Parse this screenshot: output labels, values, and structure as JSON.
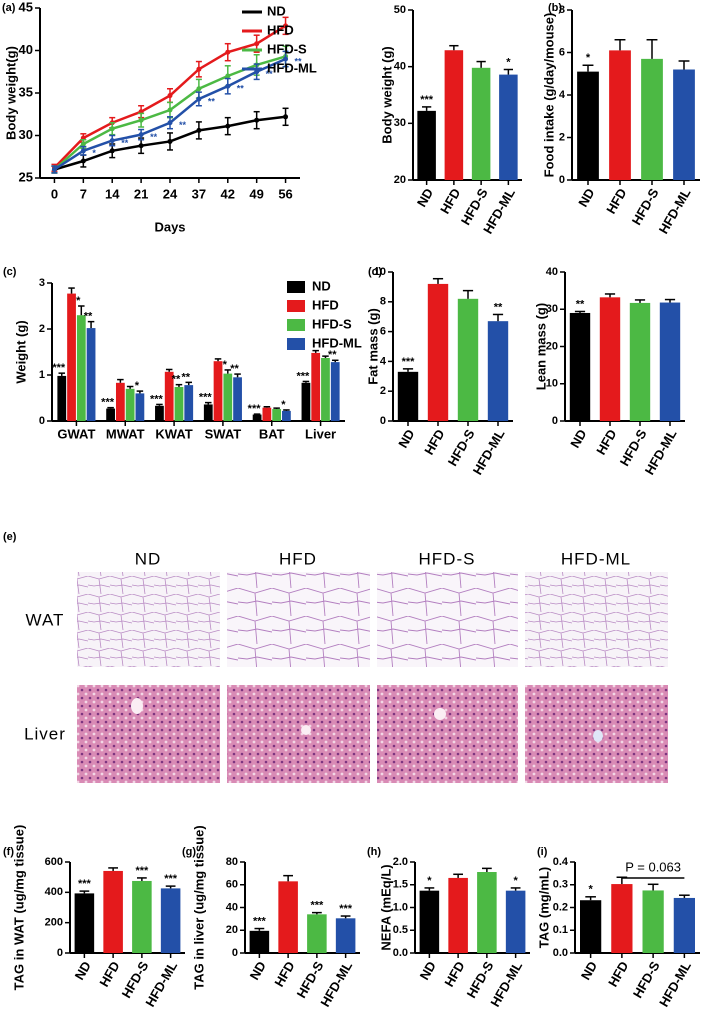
{
  "chart_data": [
    {
      "type": "line",
      "label": "(a)",
      "xlabel": "Days",
      "ylabel": "Body weight(g)",
      "categories": [
        "0",
        "7",
        "14",
        "21",
        "24",
        "37",
        "42",
        "49",
        "56"
      ],
      "ylim": [
        25,
        45
      ],
      "yticks": [
        25,
        30,
        35,
        40,
        45
      ],
      "legend": "upper right",
      "series": [
        {
          "name": "ND",
          "color": "#000000",
          "values": [
            26,
            27,
            28.2,
            28.8,
            29.3,
            30.6,
            31.1,
            31.8,
            32.2
          ],
          "errors": [
            0.4,
            0.7,
            0.8,
            0.9,
            1.0,
            1.0,
            1.0,
            1.0,
            1.0
          ]
        },
        {
          "name": "HFD",
          "color": "#e41a1c",
          "values": [
            26.2,
            29.7,
            31.5,
            32.8,
            34.7,
            37.8,
            39.8,
            40.8,
            42.9
          ],
          "errors": [
            0.4,
            0.5,
            0.6,
            0.7,
            0.8,
            0.9,
            1.0,
            1.0,
            1.0
          ]
        },
        {
          "name": "HFD-S",
          "color": "#4cb944",
          "values": [
            26,
            29,
            30.8,
            31.8,
            33,
            35.5,
            37,
            38.3,
            39.3
          ],
          "errors": [
            0.4,
            0.5,
            0.7,
            0.8,
            0.9,
            1.1,
            1.2,
            1.2,
            1.2
          ]
        },
        {
          "name": "HFD-ML",
          "color": "#2350a8",
          "values": [
            26,
            28.2,
            29.4,
            30.1,
            31.5,
            34.3,
            35.8,
            37.5,
            39
          ],
          "errors": [
            0.4,
            0.5,
            0.6,
            0.6,
            0.7,
            0.8,
            0.9,
            0.9,
            0.9
          ],
          "significance": [
            null,
            "*",
            "**",
            "**",
            "**",
            "**",
            "**",
            "**",
            "**"
          ]
        }
      ]
    },
    {
      "type": "bar",
      "ylabel": "Body weight (g)",
      "categories": [
        "ND",
        "HFD",
        "HFD-S",
        "HFD-ML"
      ],
      "colors": [
        "#000000",
        "#e41a1c",
        "#4cb944",
        "#2350a8"
      ],
      "values": [
        32.2,
        42.9,
        39.8,
        38.6
      ],
      "errors": [
        0.7,
        0.8,
        1.1,
        0.9
      ],
      "significance": [
        "***",
        null,
        null,
        "*"
      ],
      "ylim": [
        20,
        50
      ],
      "yticks": [
        20,
        30,
        40,
        50
      ]
    },
    {
      "type": "bar",
      "label": "(b)",
      "ylabel": "Food intake (g/day/mouse)",
      "categories": [
        "ND",
        "HFD",
        "HFD-S",
        "HFD-ML"
      ],
      "colors": [
        "#000000",
        "#e41a1c",
        "#4cb944",
        "#2350a8"
      ],
      "values": [
        5.1,
        6.1,
        5.7,
        5.2
      ],
      "errors": [
        0.3,
        0.5,
        0.9,
        0.4
      ],
      "significance": [
        "*",
        null,
        null,
        null
      ],
      "ylim": [
        0,
        8
      ],
      "yticks": [
        0,
        2,
        4,
        6,
        8
      ]
    },
    {
      "type": "bar",
      "label": "(c)",
      "ylabel": "Weight (g)",
      "categories": [
        "GWAT",
        "MWAT",
        "KWAT",
        "SWAT",
        "BAT",
        "Liver"
      ],
      "ylim": [
        0,
        3
      ],
      "yticks": [
        0,
        1,
        2,
        3
      ],
      "legend": "upper right",
      "series": [
        {
          "name": "ND",
          "color": "#000000",
          "values": [
            0.98,
            0.27,
            0.33,
            0.36,
            0.14,
            0.83
          ],
          "errors": [
            0.06,
            0.02,
            0.03,
            0.04,
            0.01,
            0.03
          ],
          "significance": [
            "***",
            "***",
            "***",
            "***",
            "***",
            "***"
          ]
        },
        {
          "name": "HFD",
          "color": "#e41a1c",
          "values": [
            2.77,
            0.83,
            1.07,
            1.3,
            0.29,
            1.48
          ],
          "errors": [
            0.12,
            0.07,
            0.05,
            0.05,
            0.02,
            0.05
          ]
        },
        {
          "name": "HFD-S",
          "color": "#4cb944",
          "values": [
            2.3,
            0.7,
            0.74,
            1.03,
            0.26,
            1.37
          ],
          "errors": [
            0.2,
            0.05,
            0.05,
            0.08,
            0.02,
            0.04
          ],
          "significance": [
            "*",
            null,
            "**",
            "*",
            null,
            null
          ]
        },
        {
          "name": "HFD-ML",
          "color": "#2350a8",
          "values": [
            2.02,
            0.6,
            0.78,
            0.95,
            0.22,
            1.28
          ],
          "errors": [
            0.14,
            0.05,
            0.06,
            0.07,
            0.02,
            0.04
          ],
          "significance": [
            "**",
            "*",
            "**",
            "**",
            "*",
            "**"
          ]
        }
      ]
    },
    {
      "type": "bar",
      "label": "(d)",
      "ylabel": "Fat mass (g)",
      "categories": [
        "ND",
        "HFD",
        "HFD-S",
        "HFD-ML"
      ],
      "colors": [
        "#000000",
        "#e41a1c",
        "#4cb944",
        "#2350a8"
      ],
      "values": [
        3.3,
        9.2,
        8.2,
        6.7
      ],
      "errors": [
        0.2,
        0.35,
        0.55,
        0.45
      ],
      "significance": [
        "***",
        null,
        null,
        "**"
      ],
      "ylim": [
        0,
        10
      ],
      "yticks": [
        0,
        2,
        4,
        6,
        8,
        10
      ]
    },
    {
      "type": "bar",
      "ylabel": "Lean mass (g)",
      "categories": [
        "ND",
        "HFD",
        "HFD-S",
        "HFD-ML"
      ],
      "colors": [
        "#000000",
        "#e41a1c",
        "#4cb944",
        "#2350a8"
      ],
      "values": [
        29,
        33.2,
        31.7,
        31.8
      ],
      "errors": [
        0.4,
        0.9,
        0.8,
        0.8
      ],
      "significance": [
        "**",
        null,
        null,
        null
      ],
      "ylim": [
        0,
        40
      ],
      "yticks": [
        0,
        10,
        20,
        30,
        40
      ]
    },
    {
      "type": "bar",
      "label": "(f)",
      "ylabel": "TAG in WAT (ug/mg tissue)",
      "categories": [
        "ND",
        "HFD",
        "HFD-S",
        "HFD-ML"
      ],
      "colors": [
        "#000000",
        "#e41a1c",
        "#4cb944",
        "#2350a8"
      ],
      "values": [
        393,
        541,
        475,
        426
      ],
      "errors": [
        15,
        20,
        20,
        15
      ],
      "significance": [
        "***",
        null,
        "***",
        "***"
      ],
      "ylim": [
        0,
        600
      ],
      "yticks": [
        0,
        200,
        400,
        600
      ]
    },
    {
      "type": "bar",
      "label": "(g)",
      "ylabel": "TAG in liver (ug/mg tissue)",
      "categories": [
        "ND",
        "HFD",
        "HFD-S",
        "HFD-ML"
      ],
      "colors": [
        "#000000",
        "#e41a1c",
        "#4cb944",
        "#2350a8"
      ],
      "values": [
        19.5,
        63,
        34,
        30.5
      ],
      "errors": [
        2,
        5,
        1.5,
        2
      ],
      "significance": [
        "***",
        null,
        "***",
        "***"
      ],
      "ylim": [
        0,
        80
      ],
      "yticks": [
        0,
        20,
        40,
        60,
        80
      ]
    },
    {
      "type": "bar",
      "label": "(h)",
      "ylabel": "NEFA (mEq/L)",
      "categories": [
        "ND",
        "HFD",
        "HFD-S",
        "HFD-ML"
      ],
      "colors": [
        "#000000",
        "#e41a1c",
        "#4cb944",
        "#2350a8"
      ],
      "values": [
        1.37,
        1.65,
        1.78,
        1.37
      ],
      "errors": [
        0.06,
        0.08,
        0.08,
        0.06
      ],
      "significance": [
        "*",
        null,
        null,
        "*"
      ],
      "ylim": [
        0,
        2
      ],
      "yticks": [
        {
          "value": 0,
          "label": "0.0"
        },
        0.5,
        {
          "value": 1,
          "label": "1.0"
        },
        1.5,
        {
          "value": 2,
          "label": "2.0"
        }
      ]
    },
    {
      "type": "bar",
      "label": "(i)",
      "ylabel": "TAG (mg/mL)",
      "categories": [
        "ND",
        "HFD",
        "HFD-S",
        "HFD-ML"
      ],
      "colors": [
        "#000000",
        "#e41a1c",
        "#4cb944",
        "#2350a8"
      ],
      "values": [
        0.232,
        0.303,
        0.275,
        0.242
      ],
      "errors": [
        0.015,
        0.03,
        0.027,
        0.012
      ],
      "significance": [
        "*",
        null,
        null,
        null
      ],
      "annotation": "P = 0.063",
      "ylim": [
        0,
        0.4
      ],
      "yticks": [
        {
          "value": 0,
          "label": "0.0"
        },
        0.1,
        0.2,
        0.3,
        0.4
      ]
    }
  ],
  "micrographs": {
    "label": "(e)",
    "columns": [
      "ND",
      "HFD",
      "HFD-S",
      "HFD-ML"
    ],
    "rows": [
      "WAT",
      "Liver"
    ]
  }
}
